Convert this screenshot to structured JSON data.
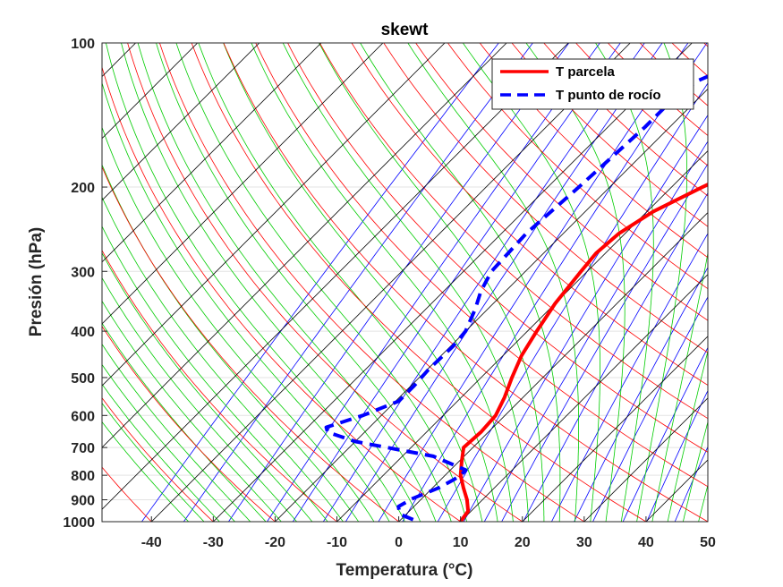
{
  "chart_data": {
    "type": "line",
    "title": "skewt",
    "xlabel": "Temperatura (°C)",
    "ylabel": "Presión (hPa)",
    "xlim": [
      -48,
      50
    ],
    "ylim": [
      1000,
      100
    ],
    "y_scale": "log",
    "skew": "skew-T: isotherms slant up-right (≈45°)",
    "xticks": [
      -40,
      -30,
      -20,
      -10,
      0,
      10,
      20,
      30,
      40,
      50
    ],
    "yticks": [
      100,
      200,
      300,
      400,
      500,
      600,
      700,
      800,
      900,
      1000
    ],
    "legend": {
      "position": "top-right"
    },
    "background_lines": [
      {
        "kind": "isotherms",
        "color": "#000000"
      },
      {
        "kind": "dry adiabats",
        "color": "#ff0000"
      },
      {
        "kind": "moist adiabats",
        "color": "#00cc00"
      },
      {
        "kind": "mixing ratio lines",
        "color": "#0000ff"
      }
    ],
    "series": [
      {
        "name": "T parcela",
        "color": "#ff0000",
        "style": "solid",
        "pressure": [
          1000,
          980,
          950,
          900,
          850,
          800,
          750,
          700,
          650,
          600,
          550,
          500,
          450,
          400,
          350,
          300,
          275,
          250,
          225,
          200,
          175,
          150,
          125,
          110,
          100
        ],
        "value": [
          10,
          9.8,
          9.5,
          7.5,
          5,
          2.5,
          0.5,
          -1.5,
          -1.2,
          -1.5,
          -3,
          -5,
          -7,
          -8.5,
          -10,
          -11,
          -11.5,
          -11,
          -9,
          -5,
          0,
          6,
          12,
          16,
          20
        ]
      },
      {
        "name": "T punto de rocío",
        "color": "#0000ff",
        "style": "dashed",
        "pressure": [
          990,
          965,
          930,
          895,
          850,
          820,
          800,
          780,
          730,
          680,
          650,
          635,
          600,
          560,
          520,
          480,
          430,
          400,
          360,
          330,
          300,
          250,
          200,
          150,
          130,
          120,
          110,
          100
        ],
        "value": [
          2,
          -1,
          -2.5,
          -1.5,
          1,
          2,
          2.5,
          2.5,
          -5,
          -20,
          -26,
          -27,
          -23,
          -19.5,
          -19.5,
          -19.8,
          -19.6,
          -20,
          -22,
          -24,
          -25.5,
          -26,
          -25,
          -24,
          -24,
          -23,
          -19,
          -14
        ]
      }
    ]
  }
}
